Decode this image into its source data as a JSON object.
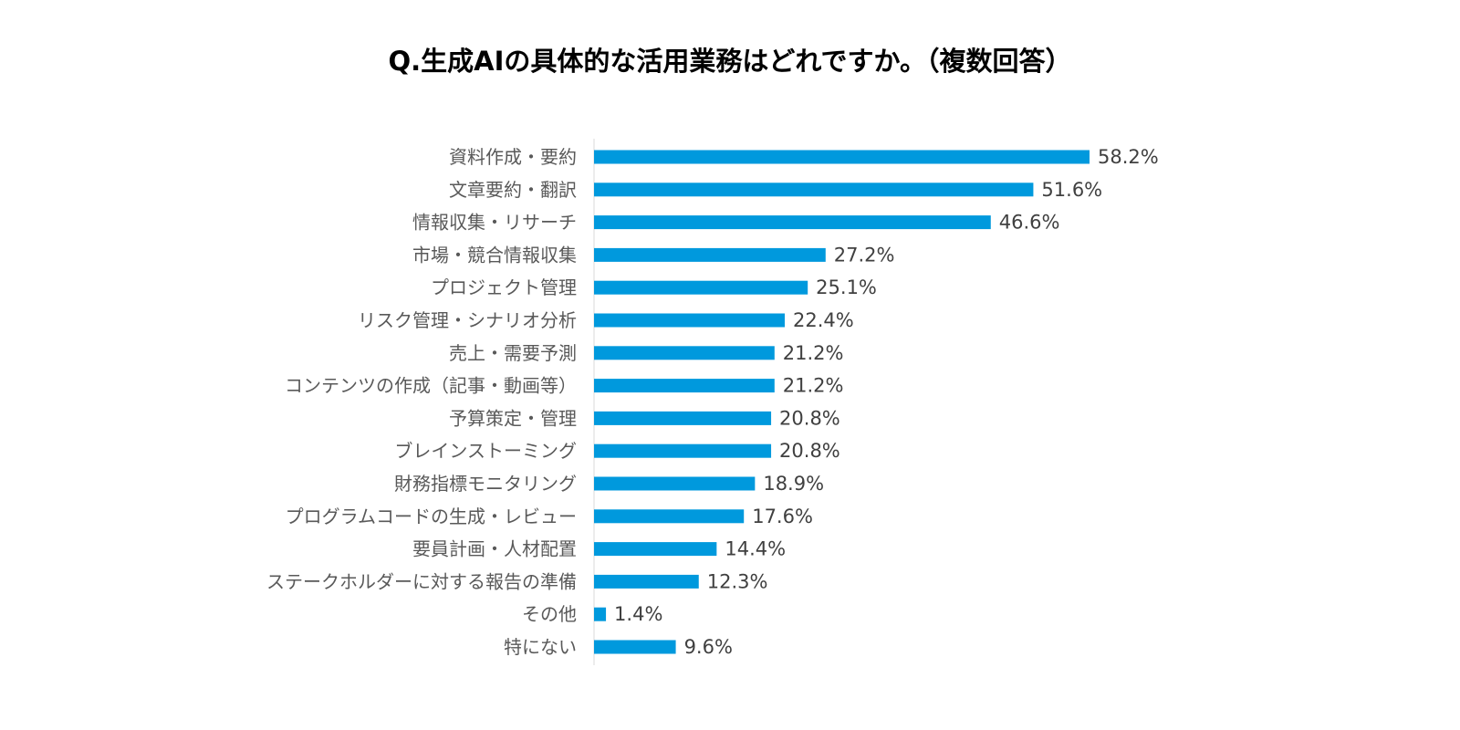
{
  "chart_data": {
    "type": "bar",
    "orientation": "horizontal",
    "title": "Q.生成AIの具体的な活用業務はどれですか。（複数回答）",
    "xlabel": "",
    "ylabel": "",
    "grid": false,
    "legend": "none",
    "bar_color": "#0099DD",
    "axis_color": "#D9D9D9",
    "value_suffix": "%",
    "categories": [
      "資料作成・要約",
      "文章要約・翻訳",
      "情報収集・リサーチ",
      "市場・競合情報収集",
      "プロジェクト管理",
      "リスク管理・シナリオ分析",
      "売上・需要予測",
      "コンテンツの作成（記事・動画等）",
      "予算策定・管理",
      "ブレインストーミング",
      "財務指標モニタリング",
      "プログラムコードの生成・レビュー",
      "要員計画・人材配置",
      "ステークホルダーに対する報告の準備",
      "その他",
      "特にない"
    ],
    "values": [
      58.2,
      51.6,
      46.6,
      27.2,
      25.1,
      22.4,
      21.2,
      21.2,
      20.8,
      20.8,
      18.9,
      17.6,
      14.4,
      12.3,
      1.4,
      9.6
    ],
    "value_labels": [
      "58.2%",
      "51.6%",
      "46.6%",
      "27.2%",
      "25.1%",
      "22.4%",
      "21.2%",
      "21.2%",
      "20.8%",
      "20.8%",
      "18.9%",
      "17.6%",
      "14.4%",
      "12.3%",
      "1.4%",
      "9.6%"
    ]
  }
}
